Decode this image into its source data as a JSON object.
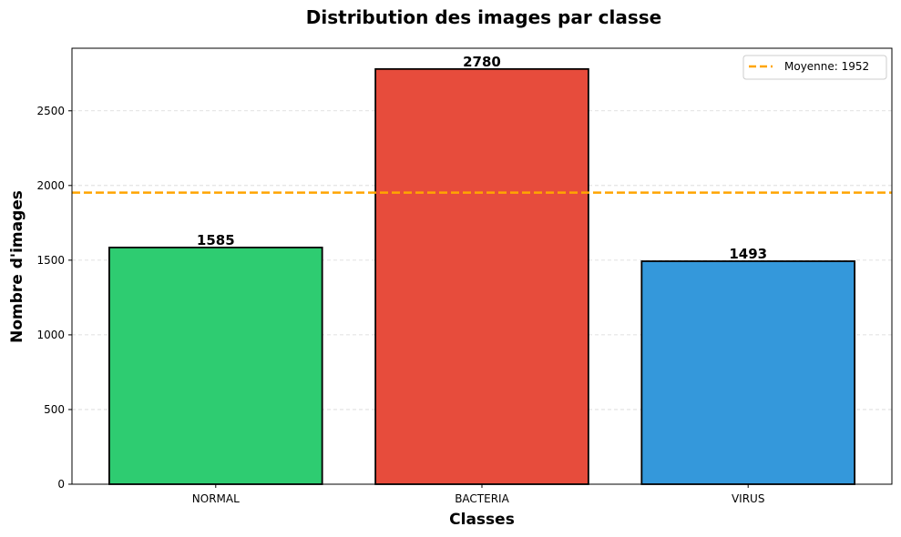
{
  "chart_data": {
    "type": "bar",
    "title": "Distribution des images par classe",
    "xlabel": "Classes",
    "ylabel": "Nombre d'images",
    "categories": [
      "NORMAL",
      "BACTERIA",
      "VIRUS"
    ],
    "values": [
      1585,
      2780,
      1493
    ],
    "data_labels": [
      "1585",
      "2780",
      "1493"
    ],
    "bar_colors": [
      "#2ecc71",
      "#e74c3c",
      "#3498db"
    ],
    "bar_edge_color": "#000000",
    "ylim": [
      0,
      2919
    ],
    "yticks": [
      0,
      500,
      1000,
      1500,
      2000,
      2500
    ],
    "ytick_labels": [
      "0",
      "500",
      "1000",
      "1500",
      "2000",
      "2500"
    ],
    "grid": true,
    "grid_axis": "y",
    "mean_line": {
      "value": 1952,
      "label": "Moyenne: 1952",
      "color": "#ffa500",
      "style": "dashed"
    },
    "legend_position": "top-right"
  }
}
